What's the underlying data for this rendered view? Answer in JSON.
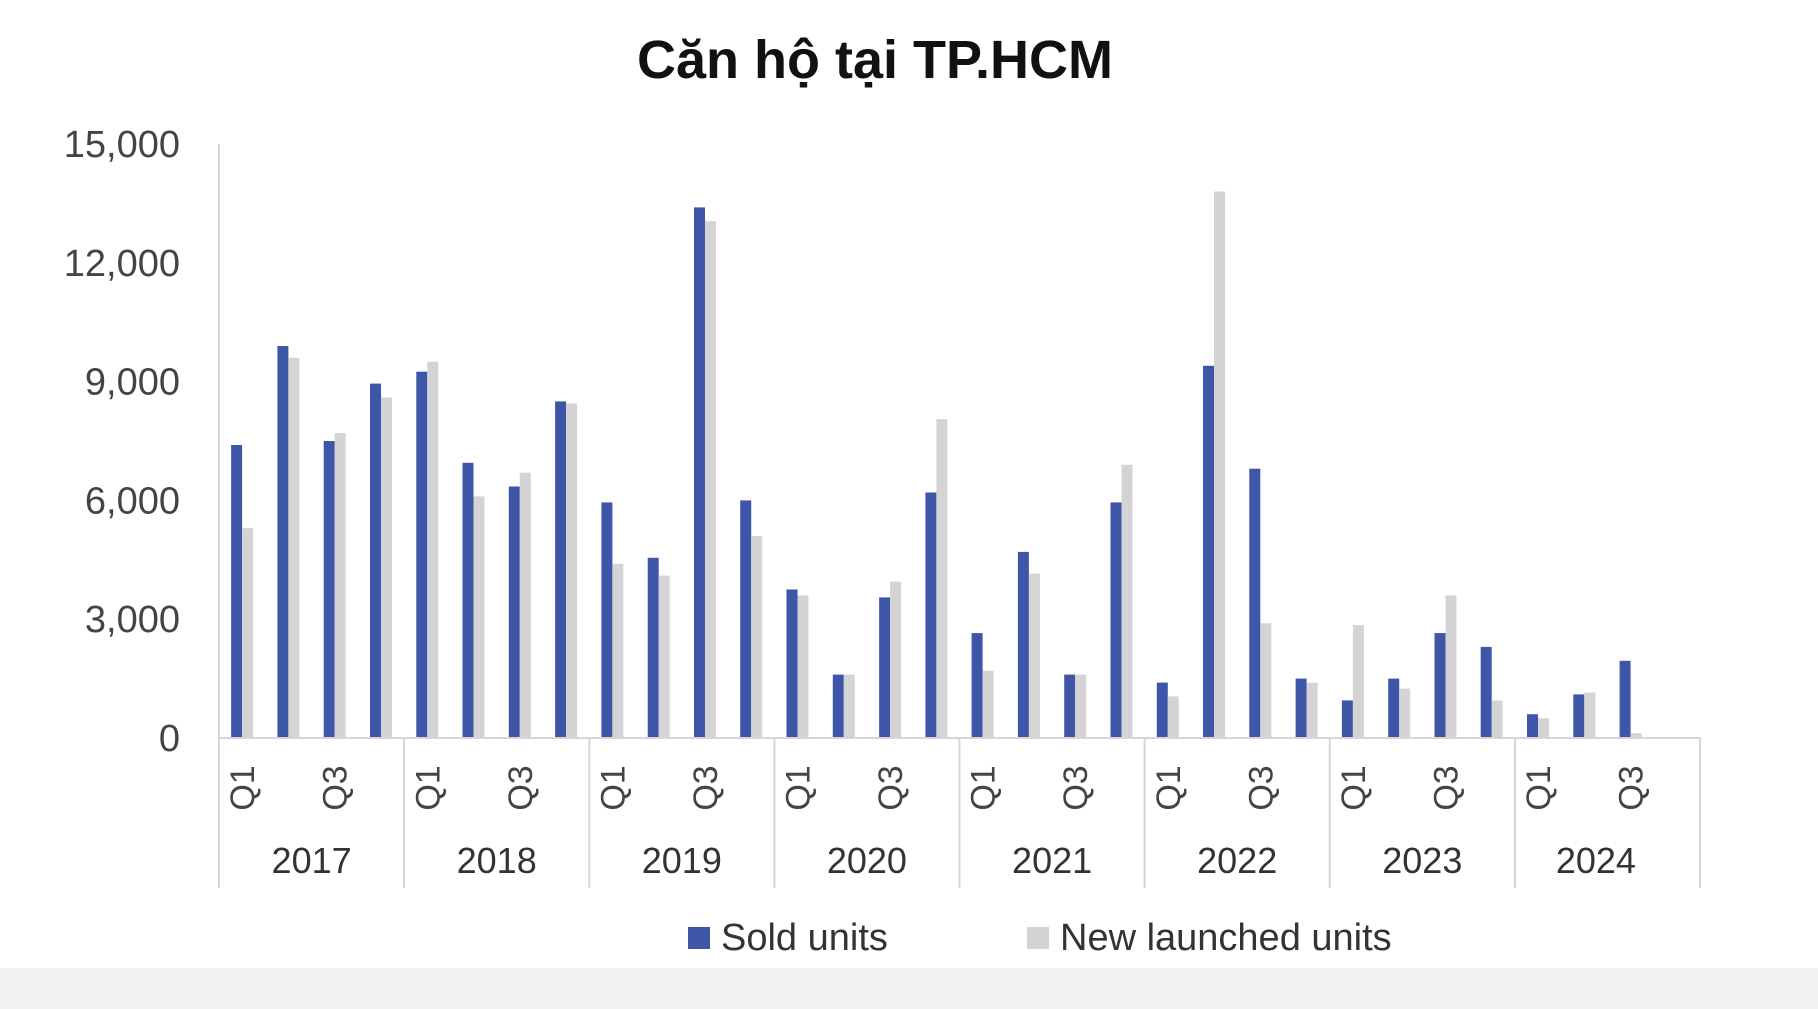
{
  "chart_data": {
    "type": "bar",
    "title": "Căn hộ tại TP.HCM",
    "xlabel": "",
    "ylabel": "",
    "ylim": [
      0,
      15000
    ],
    "yticks": [
      0,
      3000,
      6000,
      9000,
      12000,
      15000
    ],
    "ytick_labels": [
      "0",
      "3,000",
      "6,000",
      "9,000",
      "12,000",
      "15,000"
    ],
    "grid": false,
    "legend": "bottom",
    "years": [
      {
        "label": "2017",
        "quarters": 4
      },
      {
        "label": "2018",
        "quarters": 4
      },
      {
        "label": "2019",
        "quarters": 4
      },
      {
        "label": "2020",
        "quarters": 4
      },
      {
        "label": "2021",
        "quarters": 4
      },
      {
        "label": "2022",
        "quarters": 4
      },
      {
        "label": "2023",
        "quarters": 4
      },
      {
        "label": "2024",
        "quarters": 3
      }
    ],
    "categories": [
      "Q1",
      "",
      "Q3",
      "",
      "Q1",
      "",
      "Q3",
      "",
      "Q1",
      "",
      "Q3",
      "",
      "Q1",
      "",
      "Q3",
      "",
      "Q1",
      "",
      "Q3",
      "",
      "Q1",
      "",
      "Q3",
      "",
      "Q1",
      "",
      "Q3",
      "",
      "Q1",
      "",
      "Q3"
    ],
    "series": [
      {
        "name": "Sold units",
        "color": "#3f56a8",
        "values": [
          7400,
          9900,
          7500,
          8950,
          9250,
          6950,
          6350,
          8500,
          5950,
          4550,
          13400,
          6000,
          3750,
          1600,
          3550,
          6200,
          2650,
          4700,
          1600,
          5950,
          1400,
          9400,
          6800,
          1500,
          950,
          1500,
          2650,
          2300,
          600,
          1100,
          1950
        ]
      },
      {
        "name": "New launched units",
        "color": "#d4d4d4",
        "values": [
          5300,
          9600,
          7700,
          8600,
          9500,
          6100,
          6700,
          8450,
          4400,
          4100,
          13050,
          5100,
          3600,
          1600,
          3950,
          8050,
          1700,
          4150,
          1600,
          6900,
          1050,
          13800,
          2900,
          1400,
          2850,
          1250,
          3600,
          950,
          500,
          1150,
          120
        ]
      }
    ]
  }
}
